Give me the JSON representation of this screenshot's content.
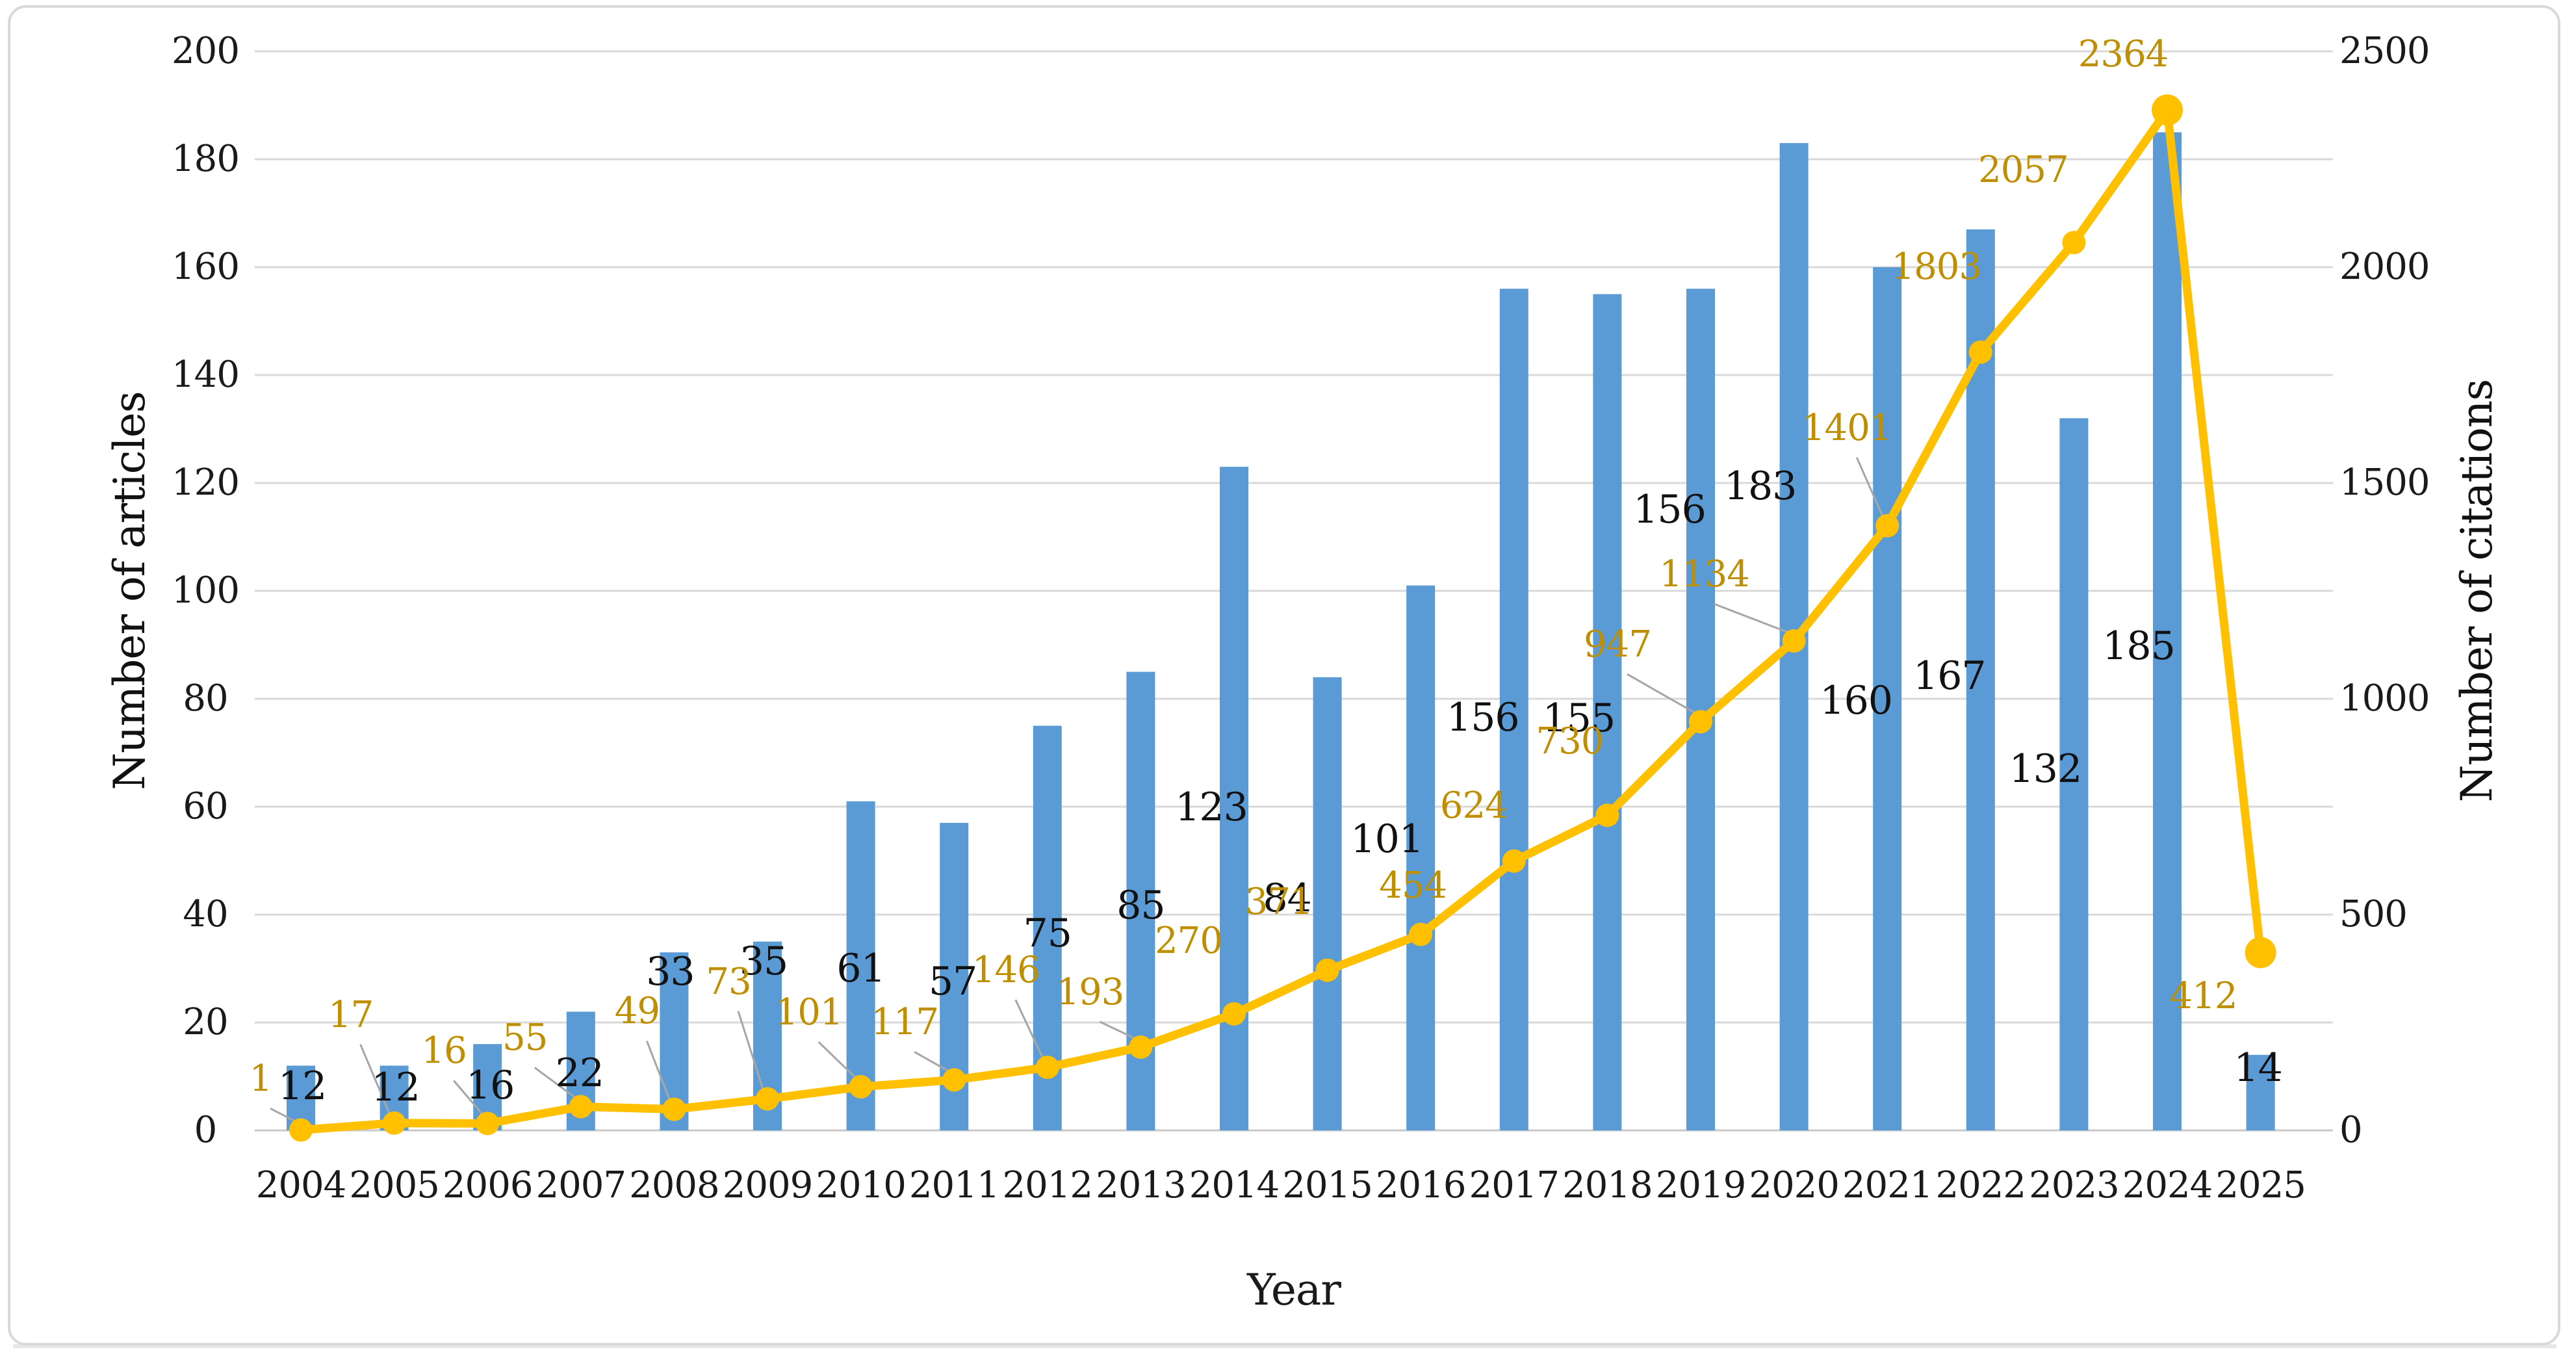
{
  "chart_data": {
    "type": "bar",
    "subtype": "combo-bar-line-dual-axis",
    "categories": [
      2004,
      2005,
      2006,
      2007,
      2008,
      2009,
      2010,
      2011,
      2012,
      2013,
      2014,
      2015,
      2016,
      2017,
      2018,
      2019,
      2020,
      2021,
      2022,
      2023,
      2024,
      2025
    ],
    "series": [
      {
        "name": "Number of articles",
        "type": "bar",
        "axis": "left",
        "color": "#5B9BD5",
        "values": [
          12,
          12,
          16,
          22,
          33,
          35,
          61,
          57,
          75,
          85,
          123,
          84,
          101,
          156,
          155,
          156,
          183,
          160,
          167,
          132,
          185,
          14
        ]
      },
      {
        "name": "Number of citations",
        "type": "line",
        "axis": "right",
        "color": "#FFC000",
        "label_color": "#BF8F00",
        "values": [
          1,
          17,
          16,
          55,
          49,
          73,
          101,
          117,
          146,
          193,
          270,
          371,
          454,
          624,
          730,
          947,
          1134,
          1401,
          1803,
          2057,
          2364,
          412
        ]
      }
    ],
    "xlabel": "Year",
    "ylabel_left": "Number of articles",
    "ylabel_right": "Number of citations",
    "ylim_left": [
      0,
      200
    ],
    "ylim_right": [
      0,
      2500
    ],
    "yticks_left": [
      0,
      20,
      40,
      60,
      80,
      100,
      120,
      140,
      160,
      180,
      200
    ],
    "yticks_right": [
      0,
      500,
      1000,
      1500,
      2000,
      2500
    ],
    "grid": true,
    "legend": "none",
    "grid_color": "#D9D9D9",
    "leader_line_color": "#A6A6A6",
    "border_color": "#D9D9D9"
  }
}
